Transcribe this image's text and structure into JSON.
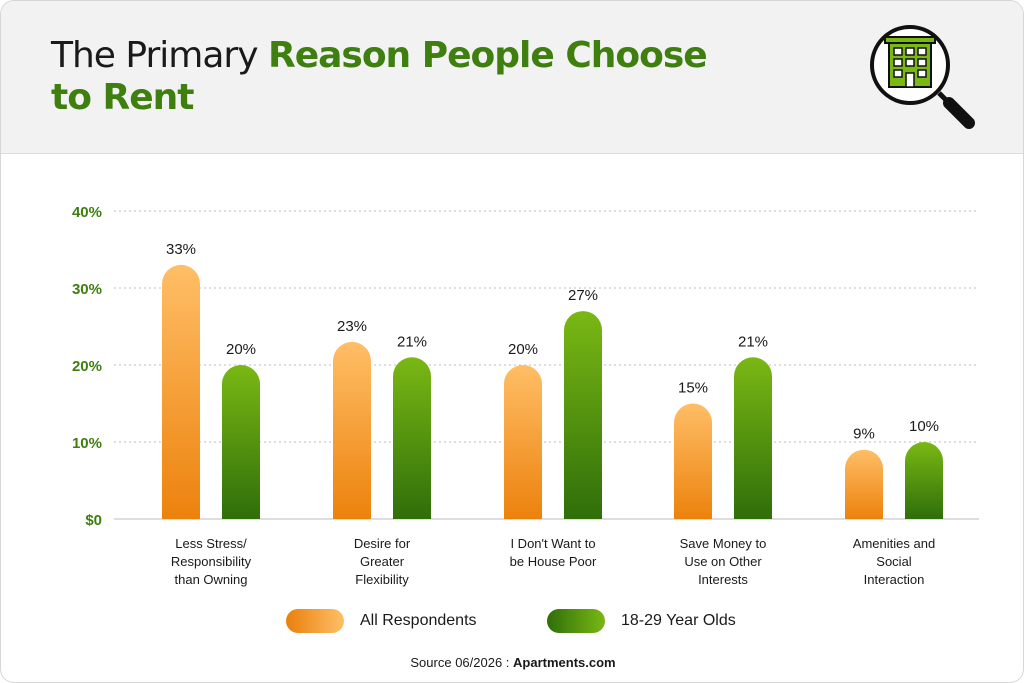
{
  "title": {
    "plain": "The Primary ",
    "highlight_line1": "Reason People Choose",
    "highlight_line2": "to Rent"
  },
  "header_icon": "magnifying-glass-building-icon",
  "colors": {
    "title_green": "#3e7f0f",
    "series_all": "#f4a13c",
    "series_young": "#5a9a10",
    "axis_green": "#3e7f0f"
  },
  "legend": {
    "all": "All Respondents",
    "young": "18-29 Year Olds"
  },
  "source": {
    "prefix": "Source 06/2026 : ",
    "name": "Apartments.com"
  },
  "chart_data": {
    "type": "bar",
    "categories": [
      [
        "Less Stress/",
        "Responsibility",
        "than Owning"
      ],
      [
        "Desire for",
        "Greater",
        "Flexibility"
      ],
      [
        "I Don't Want to",
        "be House Poor"
      ],
      [
        "Save Money to",
        "Use on Other",
        "Interests"
      ],
      [
        "Amenities and",
        "Social",
        "Interaction"
      ]
    ],
    "series": [
      {
        "name": "All Respondents",
        "values": [
          33,
          23,
          20,
          15,
          9
        ],
        "labels": [
          "33%",
          "23%",
          "20%",
          "15%",
          "9%"
        ]
      },
      {
        "name": "18-29 Year Olds",
        "values": [
          20,
          21,
          27,
          21,
          10
        ],
        "labels": [
          "20%",
          "21%",
          "27%",
          "21%",
          "10%"
        ]
      }
    ],
    "yticks": [
      "$0",
      "10%",
      "20%",
      "30%",
      "40%"
    ],
    "ylim": [
      0,
      40
    ],
    "grid": true,
    "legend_position": "bottom"
  }
}
